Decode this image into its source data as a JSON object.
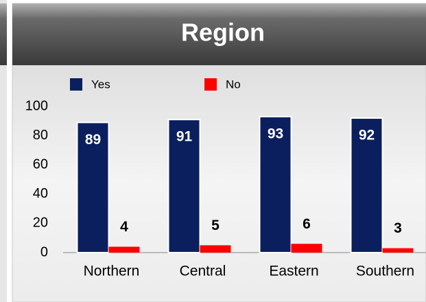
{
  "chart_data": {
    "type": "bar",
    "title": "Region",
    "categories": [
      "Northern",
      "Central",
      "Eastern",
      "Southern"
    ],
    "series": [
      {
        "name": "Yes",
        "color": "#0b1f5e",
        "values": [
          89,
          91,
          93,
          92
        ]
      },
      {
        "name": "No",
        "color": "#ff0000",
        "values": [
          4,
          5,
          6,
          3
        ]
      }
    ],
    "ylim": [
      0,
      100
    ],
    "yticks": [
      0,
      20,
      40,
      60,
      80,
      100
    ],
    "grid": false,
    "legend": "top"
  }
}
